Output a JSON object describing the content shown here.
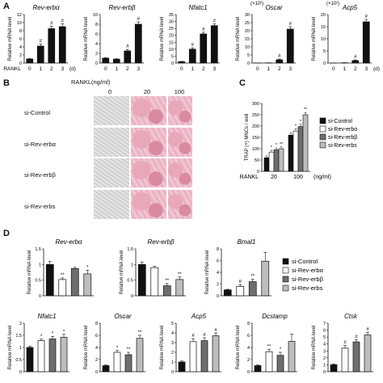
{
  "panels": {
    "a": "A",
    "b": "B",
    "c": "C",
    "d": "D"
  },
  "colors": {
    "black": "#111111",
    "white": "#ffffff",
    "dark_gray": "#6e6e6e",
    "light_gray": "#bdbdbd",
    "stain_pink": "#e8a8b8",
    "stain_gray": "#cfcfcf"
  },
  "panel_b": {
    "header": "RANKL(ng/ml)",
    "doses": [
      "0",
      "20",
      "100"
    ],
    "rows": [
      "si-Control",
      "si-Rev-erbα",
      "si-Rev-erbβ",
      "si-Rev-erbs"
    ]
  },
  "chart_data": [
    {
      "type": "bar",
      "panel": "A",
      "title": "Rev-erbα",
      "ylabel": "Relative mRNA level",
      "xlabel": "RANKL",
      "x_unit": "(d)",
      "categories": [
        "0",
        "1",
        "2",
        "3"
      ],
      "values": [
        1,
        4.2,
        8.5,
        9.0
      ],
      "errors": [
        0.1,
        0.5,
        0.6,
        0.7
      ],
      "sig": [
        "",
        "#",
        "#",
        "#"
      ],
      "ylim": [
        0,
        12
      ],
      "yticks": [
        0,
        2,
        4,
        6,
        8,
        10,
        12
      ]
    },
    {
      "type": "bar",
      "panel": "A",
      "title": "Rev-erbβ",
      "ylabel": "Relative mRNA level",
      "xlabel": "",
      "x_unit": "",
      "categories": [
        "0",
        "1",
        "2",
        "3"
      ],
      "values": [
        1,
        0.8,
        2.5,
        8.0
      ],
      "errors": [
        0.1,
        0.1,
        0.3,
        0.5
      ],
      "sig": [
        "",
        "",
        "#",
        "#"
      ],
      "ylim": [
        0,
        10
      ],
      "yticks": [
        0,
        2,
        4,
        6,
        8,
        10
      ]
    },
    {
      "type": "bar",
      "panel": "A",
      "title": "Nfatc1",
      "ylabel": "Relative mRNA level",
      "xlabel": "",
      "x_unit": "",
      "categories": [
        "0",
        "1",
        "2",
        "3"
      ],
      "values": [
        1,
        10,
        21,
        27
      ],
      "errors": [
        0.2,
        1.0,
        1.2,
        1.2
      ],
      "sig": [
        "",
        "#",
        "#",
        "#"
      ],
      "ylim": [
        0,
        35
      ],
      "yticks": [
        0,
        5,
        10,
        15,
        20,
        25,
        30,
        35
      ]
    },
    {
      "type": "bar",
      "panel": "A",
      "title": "Oscar",
      "ylabel": "Relative mRNA level",
      "scale_note": "(×10²)",
      "xlabel": "",
      "x_unit": "",
      "categories": [
        "0",
        "1",
        "2",
        "3"
      ],
      "values": [
        0.02,
        0.1,
        2.0,
        21
      ],
      "errors": [
        0,
        0.05,
        0.5,
        1.5
      ],
      "sig": [
        "",
        "",
        "#",
        "#"
      ],
      "ylim": [
        0,
        30
      ],
      "yticks": [
        0,
        5,
        10,
        15,
        20,
        25,
        30
      ]
    },
    {
      "type": "bar",
      "panel": "A",
      "title": "Acp5",
      "ylabel": "Relative mRNA level",
      "scale_note": "(×10²)",
      "xlabel": "",
      "x_unit": "(d)",
      "categories": [
        "0",
        "1",
        "2",
        "3"
      ],
      "values": [
        0.02,
        0.1,
        1.0,
        17
      ],
      "errors": [
        0,
        0.05,
        0.3,
        1.0
      ],
      "sig": [
        "",
        "",
        "#",
        "#"
      ],
      "ylim": [
        0,
        20
      ],
      "yticks": [
        0,
        5,
        10,
        15,
        20
      ]
    },
    {
      "type": "bar",
      "panel": "C",
      "ylabel": "TRAP (+) MNCs / well",
      "xlabel": "RANKL",
      "x_unit": "(ng/ml)",
      "categories": [
        "20",
        "100"
      ],
      "series": [
        {
          "name": "si-Control",
          "values": [
            60,
            160
          ],
          "errors": [
            8,
            10
          ],
          "sig": [
            "",
            ""
          ]
        },
        {
          "name": "si-Rev-erbα",
          "values": [
            85,
            178
          ],
          "errors": [
            8,
            10
          ],
          "sig": [
            "*",
            "*"
          ]
        },
        {
          "name": "si-Rev-erbβ",
          "values": [
            95,
            198
          ],
          "errors": [
            8,
            10
          ],
          "sig": [
            "*",
            "*"
          ]
        },
        {
          "name": "si-Rev-erbs",
          "values": [
            100,
            250
          ],
          "errors": [
            8,
            10
          ],
          "sig": [
            "**",
            "**"
          ]
        }
      ],
      "ylim": [
        0,
        300
      ],
      "yticks": [
        0,
        50,
        100,
        150,
        200,
        250,
        300
      ]
    },
    {
      "type": "bar",
      "panel": "D",
      "title": "Rev-erbα",
      "ylabel": "Relative mRNA level",
      "values": [
        1.0,
        0.52,
        0.87,
        0.7
      ],
      "errors": [
        0.1,
        0.05,
        0.04,
        0.12
      ],
      "sig": [
        "",
        "**",
        "",
        "*"
      ],
      "ylim": [
        0,
        1.5
      ],
      "yticks": [
        0,
        0.5,
        1,
        1.5
      ]
    },
    {
      "type": "bar",
      "panel": "D",
      "title": "Rev-erbβ",
      "ylabel": "Relative mRNA level",
      "values": [
        1.0,
        0.9,
        0.32,
        0.52
      ],
      "errors": [
        0.08,
        0.04,
        0.07,
        0.08
      ],
      "sig": [
        "",
        "",
        "**",
        "**"
      ],
      "ylim": [
        0,
        1.5
      ],
      "yticks": [
        0,
        0.5,
        1,
        1.5
      ]
    },
    {
      "type": "bar",
      "panel": "D",
      "title": "Bmal1",
      "ylabel": "Relative mRNA level",
      "values": [
        1.0,
        1.6,
        2.4,
        5.9
      ],
      "errors": [
        0.1,
        0.3,
        0.4,
        1.5
      ],
      "sig": [
        "",
        "#",
        "**",
        ""
      ],
      "ylim": [
        0,
        8
      ],
      "yticks": [
        0,
        2,
        4,
        6,
        8
      ]
    },
    {
      "type": "bar",
      "panel": "D",
      "title": "Nfatc1",
      "ylabel": "Relative mRNA level",
      "values": [
        1.0,
        1.28,
        1.35,
        1.42
      ],
      "errors": [
        0.05,
        0.06,
        0.1,
        0.12
      ],
      "sig": [
        "",
        "*",
        "*",
        "*"
      ],
      "ylim": [
        0,
        2
      ],
      "yticks": [
        0,
        0.5,
        1,
        1.5,
        2
      ]
    },
    {
      "type": "bar",
      "panel": "D",
      "title": "Oscar",
      "ylabel": "Relative mRNA level",
      "values": [
        1.0,
        3.2,
        2.8,
        5.5
      ],
      "errors": [
        0.1,
        0.3,
        0.4,
        0.5
      ],
      "sig": [
        "",
        "*",
        "**",
        "**"
      ],
      "ylim": [
        0,
        8
      ],
      "yticks": [
        0,
        2,
        4,
        6,
        8
      ]
    },
    {
      "type": "bar",
      "panel": "D",
      "title": "Acp5",
      "ylabel": "Relative mRNA level",
      "values": [
        1.0,
        3.1,
        3.2,
        3.7
      ],
      "errors": [
        0.1,
        0.3,
        0.3,
        0.3
      ],
      "sig": [
        "",
        "#",
        "#",
        "#"
      ],
      "ylim": [
        0,
        5
      ],
      "yticks": [
        0,
        1,
        2,
        3,
        4,
        5
      ]
    },
    {
      "type": "bar",
      "panel": "D",
      "title": "Dcstamp",
      "ylabel": "Relative mRNA level",
      "values": [
        1.0,
        3.3,
        2.7,
        5.0
      ],
      "errors": [
        0.1,
        0.4,
        0.5,
        1.2
      ],
      "sig": [
        "",
        "**",
        "*",
        ""
      ],
      "ylim": [
        0,
        8
      ],
      "yticks": [
        0,
        2,
        4,
        6,
        8
      ]
    },
    {
      "type": "bar",
      "panel": "D",
      "title": "Ctsk",
      "ylabel": "Relative mRNA level",
      "values": [
        1.0,
        3.4,
        4.3,
        5.3
      ],
      "errors": [
        0.1,
        0.4,
        0.3,
        0.4
      ],
      "sig": [
        "",
        "#",
        "#",
        "#"
      ],
      "ylim": [
        0,
        7
      ],
      "yticks": [
        0,
        1,
        2,
        3,
        4,
        5,
        6,
        7
      ]
    }
  ],
  "legend": [
    "si-Control",
    "si-Rev-erbα",
    "si-Rev-erbβ",
    "si-Rev-erbs"
  ]
}
